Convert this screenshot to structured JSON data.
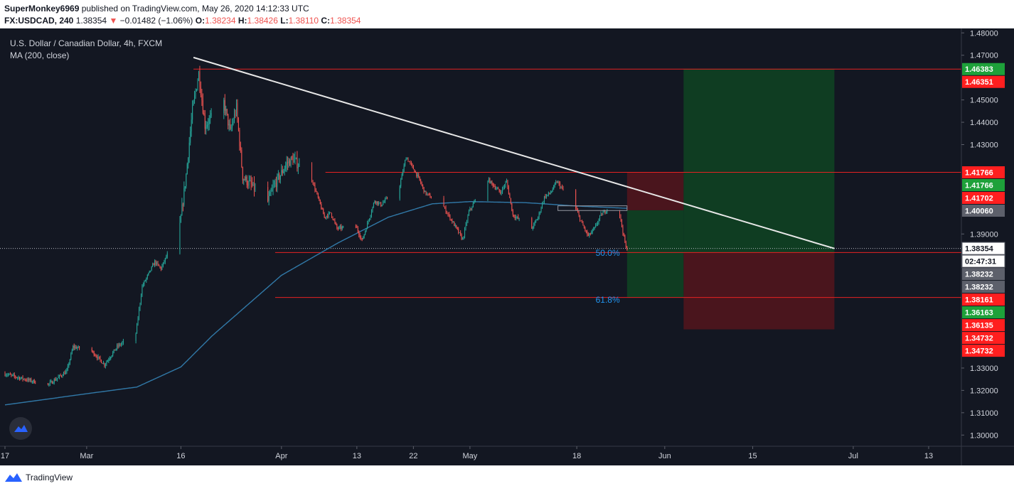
{
  "header": {
    "publisher": "SuperMonkey6969",
    "published_text": "published on TradingView.com, May 26, 2020 14:12:33 UTC",
    "symbol_interval": "FX:USDCAD, 240",
    "last_price": "1.38354",
    "change": "−0.01482 (−1.06%)",
    "o_label": "O:",
    "o_value": "1.38234",
    "h_label": "H:",
    "h_value": "1.38426",
    "l_label": "L:",
    "l_value": "1.38110",
    "c_label": "C:",
    "c_value": "1.38354"
  },
  "legend": {
    "title": "U.S. Dollar / Canadian Dollar, 4h, FXCM",
    "indicator": "MA (200, close)"
  },
  "footer": {
    "brand": "TradingView"
  },
  "colors": {
    "background": "#131722",
    "up": "#26a69a",
    "down": "#ef5350",
    "ma": "#3179a8",
    "hline": "#e52222",
    "trendline": "#e8e8e8",
    "fib": "#2196f3",
    "profit": "#0f3d22",
    "loss": "#4a151d",
    "axis_text": "#d1d4dc"
  },
  "chart_data": {
    "type": "candlestick",
    "y_range": [
      1.295,
      1.482
    ],
    "x_range": [
      "2020-02-17",
      "2020-07-19"
    ],
    "y_ticks": [
      "1.48000",
      "1.47000",
      "1.45000",
      "1.44000",
      "1.43000",
      "1.39000",
      "1.33000",
      "1.32000",
      "1.31000",
      "1.30000"
    ],
    "x_ticks": [
      {
        "date": "2020-02-17",
        "label": "17"
      },
      {
        "date": "2020-03-01",
        "label": "Mar"
      },
      {
        "date": "2020-03-16",
        "label": "16"
      },
      {
        "date": "2020-04-01",
        "label": "Apr"
      },
      {
        "date": "2020-04-13",
        "label": "13"
      },
      {
        "date": "2020-04-22",
        "label": "22"
      },
      {
        "date": "2020-05-01",
        "label": "May"
      },
      {
        "date": "2020-05-18",
        "label": "18"
      },
      {
        "date": "2020-06-01",
        "label": "Jun"
      },
      {
        "date": "2020-06-15",
        "label": "15"
      },
      {
        "date": "2020-07-01",
        "label": "Jul"
      },
      {
        "date": "2020-07-13",
        "label": "13"
      }
    ],
    "price_anchors": [
      [
        "2020-02-17",
        1.3275
      ],
      [
        "2020-02-21",
        1.3245
      ],
      [
        "2020-02-24",
        1.3225
      ],
      [
        "2020-02-27",
        1.3285
      ],
      [
        "2020-02-28",
        1.3395
      ],
      [
        "2020-03-02",
        1.3375
      ],
      [
        "2020-03-04",
        1.3315
      ],
      [
        "2020-03-06",
        1.3395
      ],
      [
        "2020-03-09",
        1.3455
      ],
      [
        "2020-03-10",
        1.3665
      ],
      [
        "2020-03-12",
        1.3775
      ],
      [
        "2020-03-13",
        1.3745
      ],
      [
        "2020-03-16",
        1.3935
      ],
      [
        "2020-03-17",
        1.4165
      ],
      [
        "2020-03-18",
        1.4455
      ],
      [
        "2020-03-19",
        1.462
      ],
      [
        "2020-03-20",
        1.4385
      ],
      [
        "2020-03-23",
        1.449
      ],
      [
        "2020-03-24",
        1.4355
      ],
      [
        "2020-03-25",
        1.4465
      ],
      [
        "2020-03-26",
        1.4155
      ],
      [
        "2020-03-30",
        1.4045
      ],
      [
        "2020-03-31",
        1.4115
      ],
      [
        "2020-04-02",
        1.4215
      ],
      [
        "2020-04-03",
        1.4235
      ],
      [
        "2020-04-06",
        1.4145
      ],
      [
        "2020-04-07",
        1.406
      ],
      [
        "2020-04-08",
        1.3975
      ],
      [
        "2020-04-09",
        1.3995
      ],
      [
        "2020-04-10",
        1.3925
      ],
      [
        "2020-04-13",
        1.3935
      ],
      [
        "2020-04-14",
        1.387
      ],
      [
        "2020-04-15",
        1.396
      ],
      [
        "2020-04-16",
        1.405
      ],
      [
        "2020-04-17",
        1.403
      ],
      [
        "2020-04-20",
        1.412
      ],
      [
        "2020-04-21",
        1.4245
      ],
      [
        "2020-04-22",
        1.42
      ],
      [
        "2020-04-23",
        1.415
      ],
      [
        "2020-04-24",
        1.4085
      ],
      [
        "2020-04-27",
        1.402
      ],
      [
        "2020-04-29",
        1.3925
      ],
      [
        "2020-04-30",
        1.3875
      ],
      [
        "2020-05-01",
        1.4
      ],
      [
        "2020-05-04",
        1.4145
      ],
      [
        "2020-05-06",
        1.4085
      ],
      [
        "2020-05-07",
        1.4135
      ],
      [
        "2020-05-08",
        1.3985
      ],
      [
        "2020-05-11",
        1.3925
      ],
      [
        "2020-05-12",
        1.3975
      ],
      [
        "2020-05-13",
        1.4065
      ],
      [
        "2020-05-14",
        1.4085
      ],
      [
        "2020-05-15",
        1.4135
      ],
      [
        "2020-05-18",
        1.4015
      ],
      [
        "2020-05-19",
        1.3945
      ],
      [
        "2020-05-20",
        1.389
      ],
      [
        "2020-05-21",
        1.3925
      ],
      [
        "2020-05-22",
        1.3985
      ],
      [
        "2020-05-24",
        1.4035
      ],
      [
        "2020-05-25",
        1.3985
      ],
      [
        "2020-05-26",
        1.38354
      ]
    ],
    "ma200_anchors": [
      [
        "2020-02-17",
        1.3135
      ],
      [
        "2020-03-01",
        1.3185
      ],
      [
        "2020-03-09",
        1.3215
      ],
      [
        "2020-03-16",
        1.3305
      ],
      [
        "2020-03-21",
        1.3445
      ],
      [
        "2020-04-01",
        1.3715
      ],
      [
        "2020-04-10",
        1.386
      ],
      [
        "2020-04-18",
        1.3975
      ],
      [
        "2020-04-25",
        1.4035
      ],
      [
        "2020-05-01",
        1.4045
      ],
      [
        "2020-05-10",
        1.404
      ],
      [
        "2020-05-18",
        1.4025
      ],
      [
        "2020-05-26",
        1.4015
      ]
    ],
    "trendline": {
      "from": [
        "2020-03-18",
        1.469
      ],
      "to": [
        "2020-06-28",
        1.3835
      ]
    },
    "horizontal_lines": [
      {
        "price": 1.4638,
        "from": "2020-03-18",
        "to": "2020-07-19"
      },
      {
        "price": 1.4176,
        "from": "2020-04-08",
        "to": "2020-07-19"
      },
      {
        "price": 1.3817,
        "from": "2020-03-31",
        "to": "2020-07-19"
      },
      {
        "price": 1.3616,
        "from": "2020-03-31",
        "to": "2020-07-19"
      }
    ],
    "fib_labels": [
      {
        "text": "50.0%",
        "date": "2020-05-21",
        "price": 1.3803
      },
      {
        "text": "61.8%",
        "date": "2020-05-21",
        "price": 1.3592
      }
    ],
    "positions": [
      {
        "kind": "short",
        "entry": 1.4006,
        "stop": 1.4176,
        "target": 1.3616,
        "from": "2020-05-26",
        "to": "2020-06-04"
      },
      {
        "kind": "long",
        "entry": 1.3817,
        "stop": 1.3473,
        "target": 1.4638,
        "from": "2020-06-04",
        "to": "2020-06-28"
      }
    ],
    "flat_zone": {
      "top": 1.4026,
      "bottom": 1.4005,
      "from": "2020-05-15",
      "to": "2020-05-26"
    },
    "price_labels": [
      {
        "text": "1.46383",
        "price": 1.4638,
        "color": "#1ea13a"
      },
      {
        "text": "1.46351",
        "price": 1.4635,
        "color": "#ff1f1f"
      },
      {
        "text": "1.41766",
        "price": 1.4176,
        "color": "#ff1f1f"
      },
      {
        "text": "1.41766",
        "price": 1.4176,
        "color": "#1ea13a"
      },
      {
        "text": "1.41702",
        "price": 1.417,
        "color": "#ff1f1f"
      },
      {
        "text": "1.40060",
        "price": 1.4006,
        "color": "#5d606b"
      },
      {
        "text": "1.38354",
        "price": 1.38354,
        "color": "#ffffff"
      },
      {
        "text": "02:47:31",
        "price": 1.3815,
        "color": "#ffffff"
      },
      {
        "text": "1.38232",
        "price": 1.3823,
        "color": "#5d606b"
      },
      {
        "text": "1.38232",
        "price": 1.3823,
        "color": "#5d606b"
      },
      {
        "text": "1.38161",
        "price": 1.3816,
        "color": "#ff1f1f"
      },
      {
        "text": "1.36163",
        "price": 1.3616,
        "color": "#1ea13a"
      },
      {
        "text": "1.36135",
        "price": 1.3613,
        "color": "#ff1f1f"
      },
      {
        "text": "1.34732",
        "price": 1.3473,
        "color": "#ff1f1f"
      },
      {
        "text": "1.34732",
        "price": 1.3473,
        "color": "#ff1f1f"
      }
    ]
  }
}
